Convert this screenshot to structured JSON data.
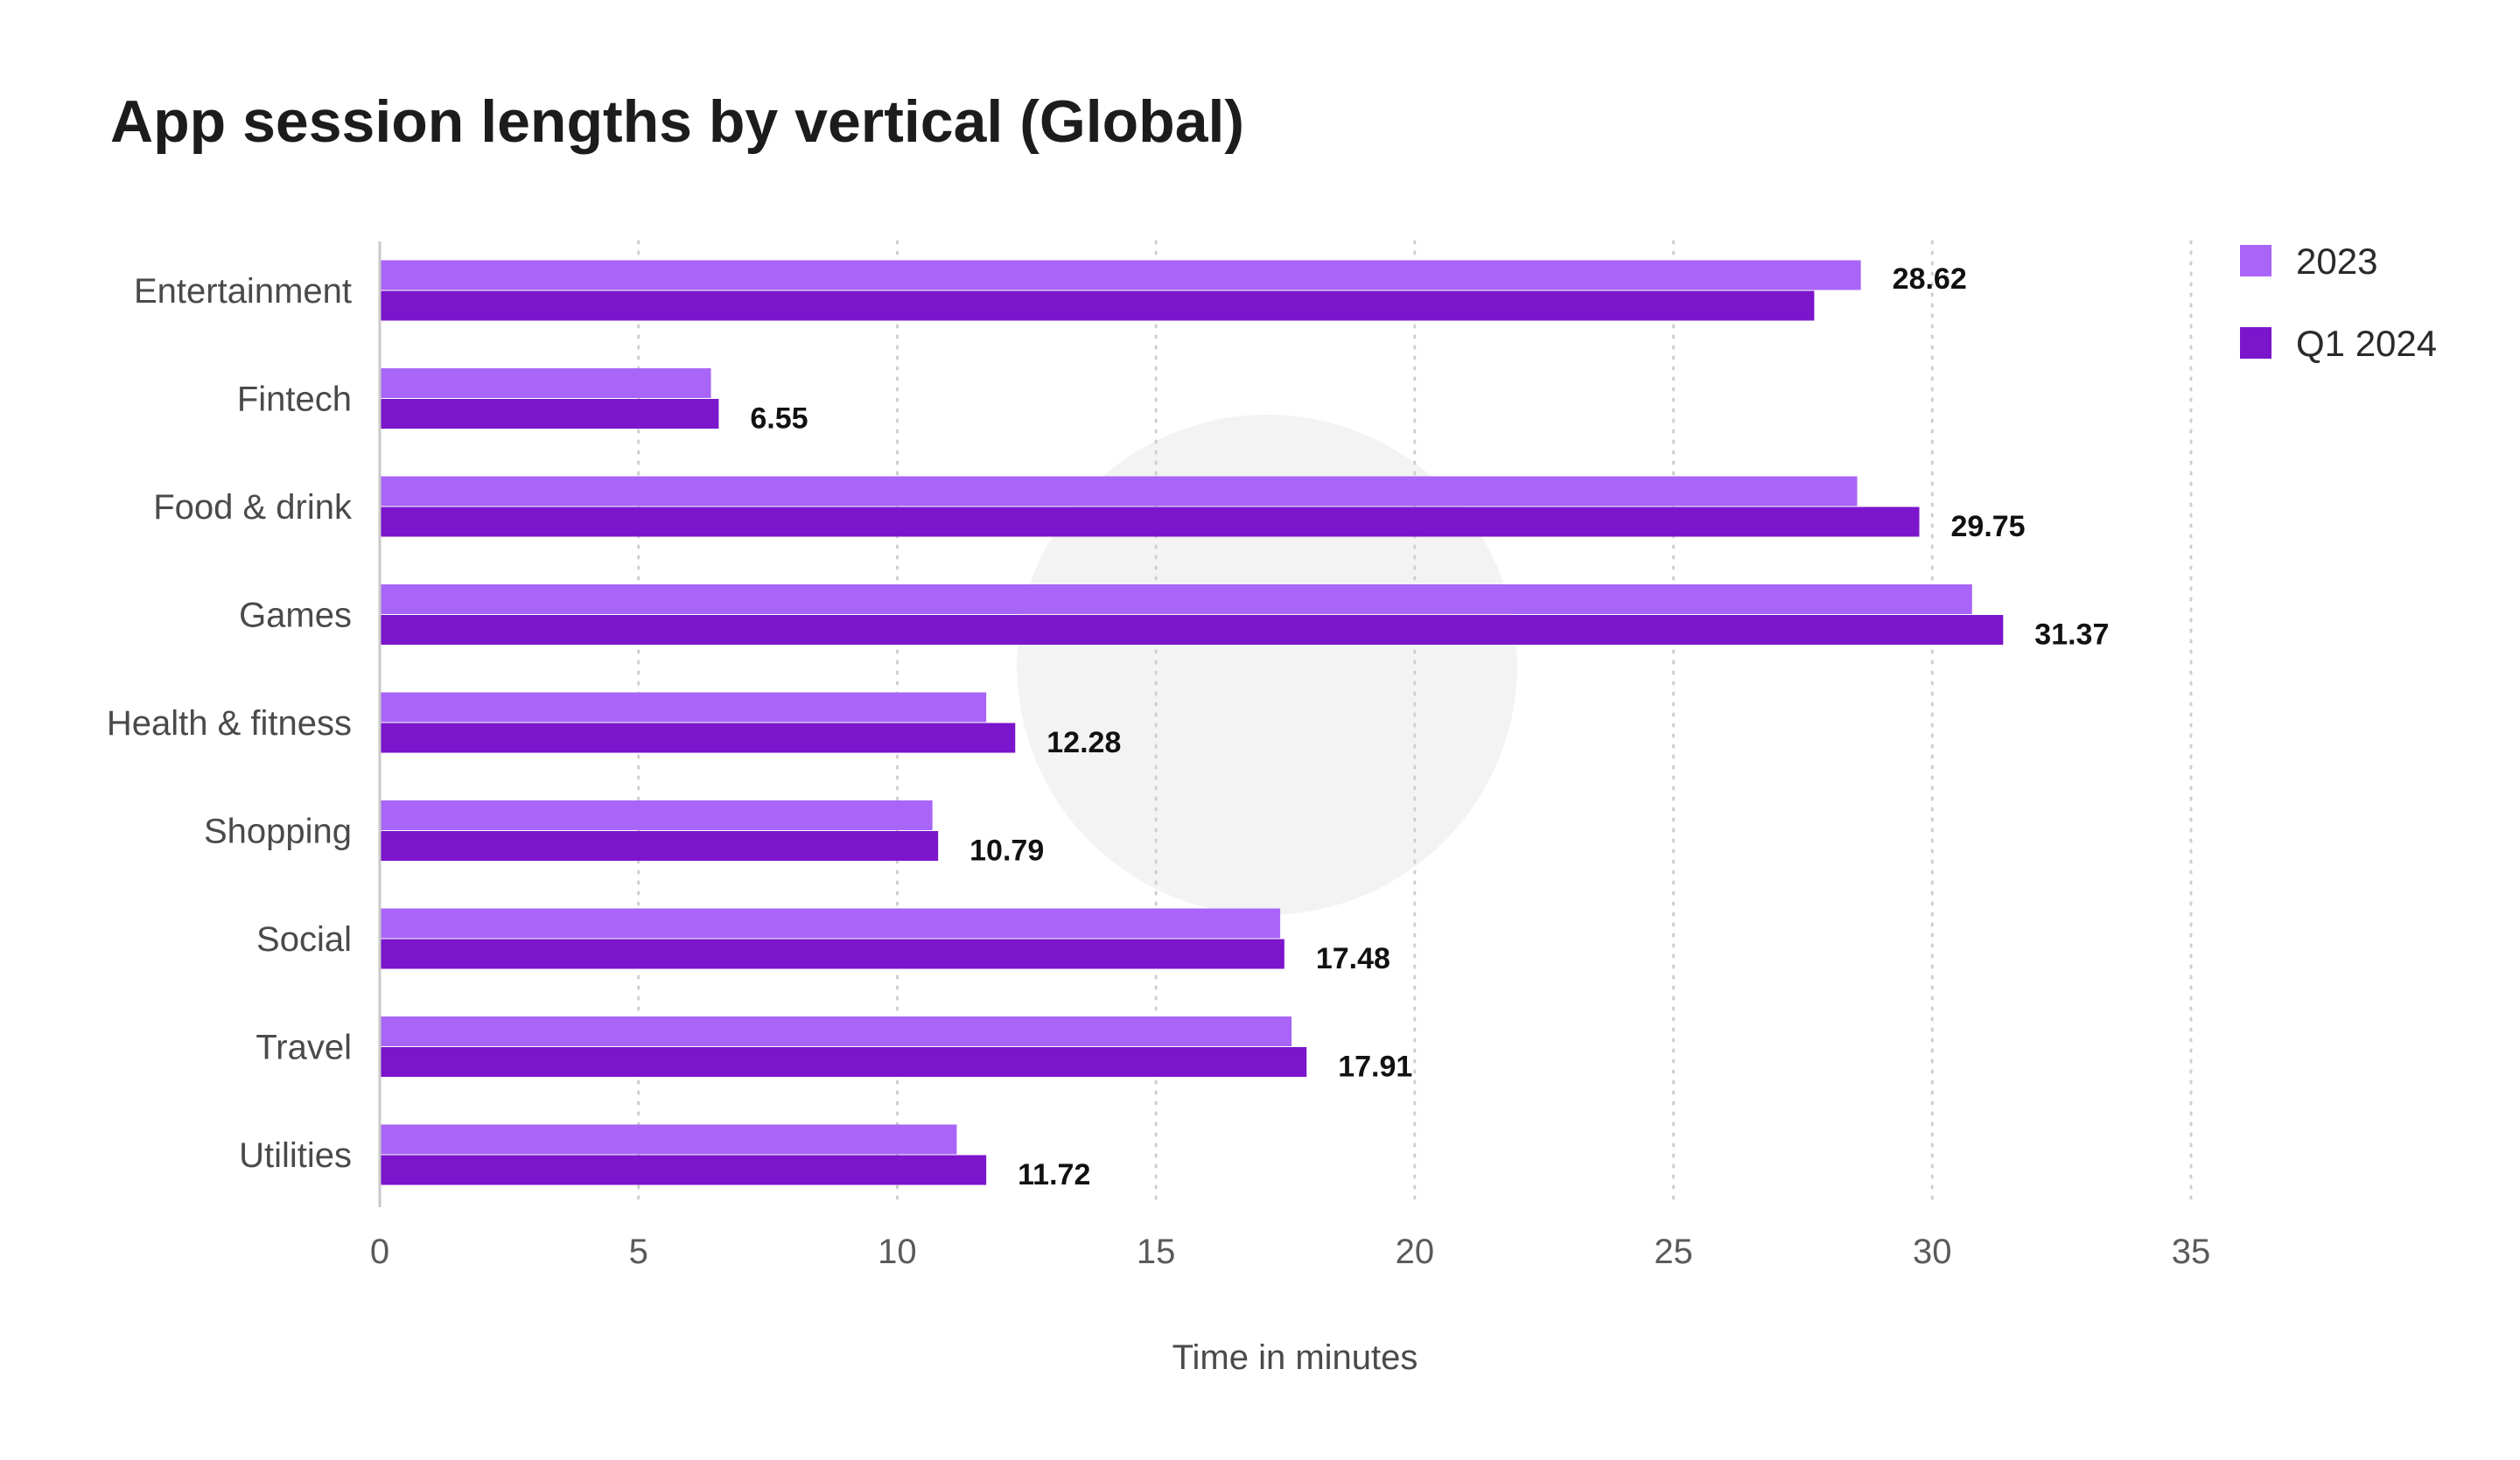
{
  "chart_data": {
    "type": "bar",
    "orientation": "horizontal",
    "title": "App session lengths by vertical (Global)",
    "xlabel": "Time in minutes",
    "ylabel": "",
    "xlim": [
      0,
      35
    ],
    "xticks": [
      "0",
      "5",
      "10",
      "15",
      "20",
      "25",
      "30",
      "35"
    ],
    "grid": "vertical dotted",
    "legend_position": "top-right",
    "categories": [
      "Entertainment",
      "Fintech",
      "Food & drink",
      "Games",
      "Health & fitness",
      "Shopping",
      "Social",
      "Travel",
      "Utilities"
    ],
    "series": [
      {
        "name": "2023",
        "color": "#a865f7",
        "values": [
          28.62,
          6.4,
          28.55,
          30.77,
          11.72,
          10.68,
          17.4,
          17.62,
          11.15
        ]
      },
      {
        "name": "Q1 2024",
        "color": "#7b16cc",
        "values": [
          27.72,
          6.55,
          29.75,
          31.37,
          12.28,
          10.79,
          17.48,
          17.91,
          11.72
        ]
      }
    ],
    "data_labels": [
      "28.62",
      "6.55",
      "29.75",
      "31.37",
      "12.28",
      "10.79",
      "17.48",
      "17.91",
      "11.72"
    ]
  }
}
